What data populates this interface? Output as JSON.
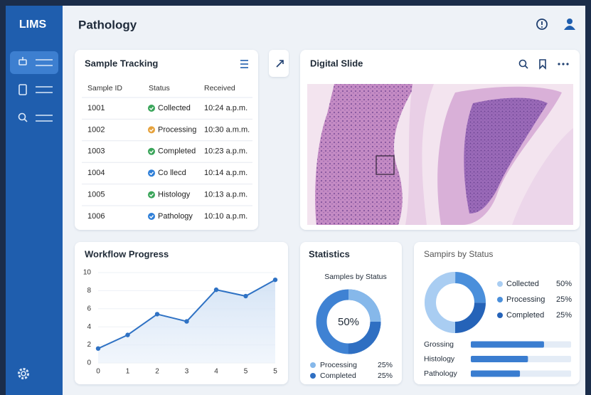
{
  "sidebar": {
    "title": "LIMS"
  },
  "header": {
    "title": "Pathology"
  },
  "sample_tracking": {
    "title": "Sample Tracking",
    "columns": [
      "Sample ID",
      "Status",
      "Received"
    ],
    "rows": [
      {
        "id": "1001",
        "status": "Collected",
        "status_color": "#3aa55a",
        "received": "10:24 a.p.m."
      },
      {
        "id": "1002",
        "status": "Processing",
        "status_color": "#e6a23c",
        "received": "10:30 a.m.m."
      },
      {
        "id": "1003",
        "status": "Completed",
        "status_color": "#3aa55a",
        "received": "10:23 a.p.m."
      },
      {
        "id": "1004",
        "status": "Co llecd",
        "status_color": "#2f7fd8",
        "received": "10:14 a.p.m."
      },
      {
        "id": "1005",
        "status": "Histology",
        "status_color": "#3aa55a",
        "received": "10:13 a.p.m."
      },
      {
        "id": "1006",
        "status": "Pathology",
        "status_color": "#2f7fd8",
        "received": "10:10 a.p.m."
      }
    ]
  },
  "digital_slide": {
    "title": "Digital Slide"
  },
  "chart_data": [
    {
      "type": "line",
      "title": "Workflow Progress",
      "categories": [
        "0",
        "1",
        "2",
        "3",
        "4",
        "5",
        "5"
      ],
      "values": [
        1.6,
        3.1,
        5.4,
        4.6,
        8.1,
        7.4,
        9.2
      ],
      "color": "#2f72c4",
      "area": true,
      "ylim": [
        0,
        10
      ],
      "yticks": [
        0,
        2,
        4,
        6,
        8,
        10
      ],
      "grid": true
    },
    {
      "type": "donut",
      "title": "Statistics",
      "subtitle": "Samples by Status",
      "center_label": "50%",
      "categories": [
        "Processing",
        "Completed"
      ],
      "values": [
        25,
        25
      ],
      "value_labels": [
        "25%",
        "25%"
      ],
      "colors": [
        "#86b8ea",
        "#2f6fc2"
      ],
      "rest_color": "#3f82d3"
    },
    {
      "type": "donut",
      "title": "Sampirs by Status",
      "categories": [
        "Collected",
        "Processing",
        "Completed"
      ],
      "values": [
        50,
        25,
        25
      ],
      "value_labels": [
        "50%",
        "25%",
        "25%"
      ],
      "colors": [
        "#a9cdf2",
        "#4a8fdb",
        "#2563b8"
      ]
    },
    {
      "type": "hbar",
      "categories": [
        "Grossing",
        "Histology",
        "Pathology"
      ],
      "values": [
        73,
        57,
        49
      ],
      "color": "#3a7dd0",
      "xlim": [
        0,
        100
      ]
    }
  ]
}
